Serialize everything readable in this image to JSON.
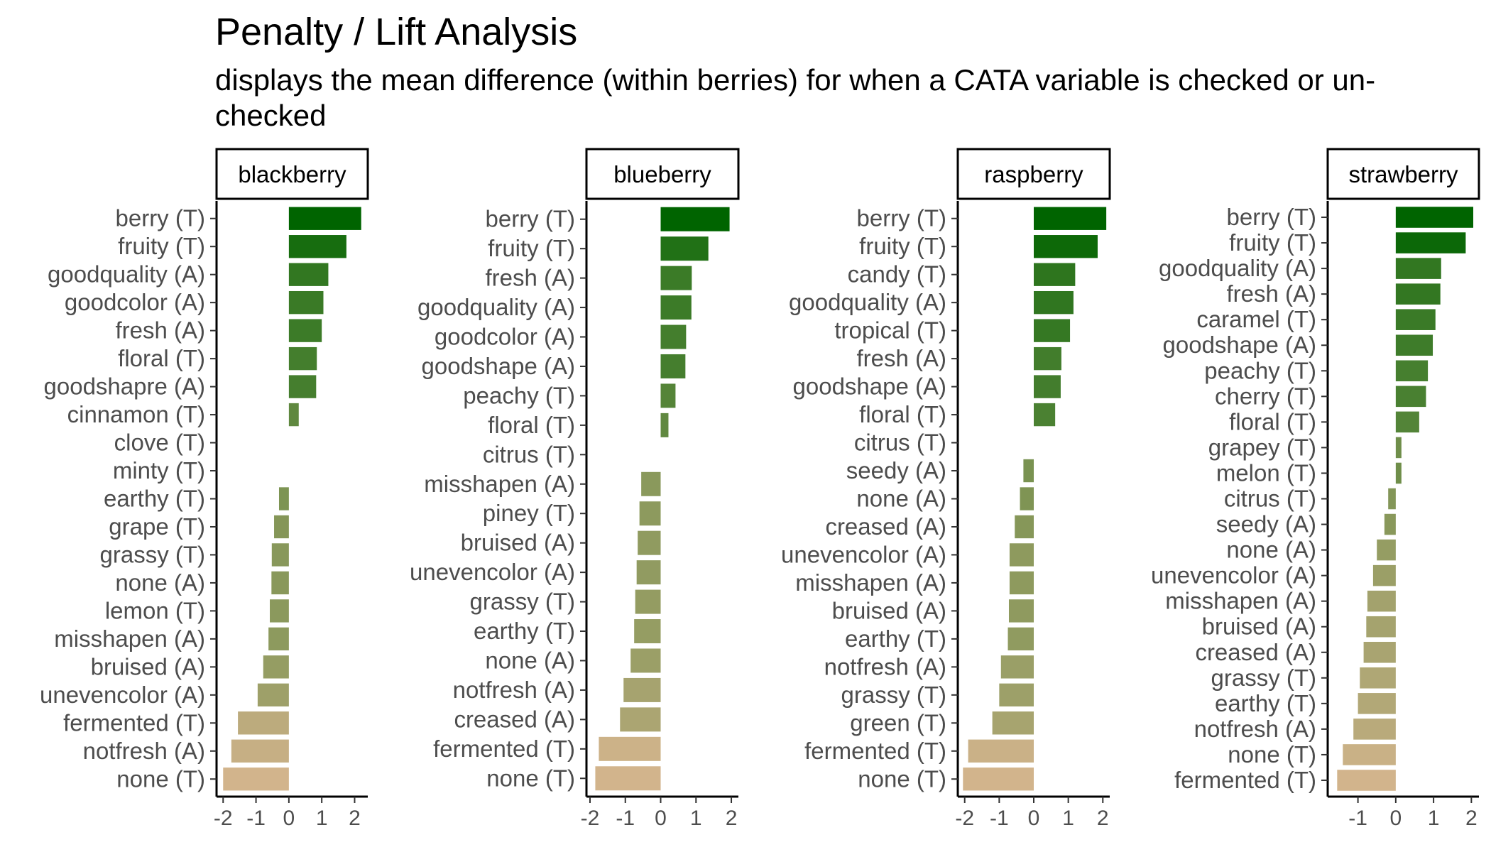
{
  "title": "Penalty / Lift Analysis",
  "subtitle": "displays the mean difference (within berries) for when a CATA variable is checked or un-checked",
  "colors": {
    "high": "#006400",
    "low": "#D2B48C"
  },
  "chart_data": [
    {
      "type": "bar",
      "orientation": "horizontal",
      "facet": "blackberry",
      "categories": [
        "berry (T)",
        "fruity (T)",
        "goodquality (A)",
        "goodcolor (A)",
        "fresh (A)",
        "floral (T)",
        "goodshapre (A)",
        "cinnamon (T)",
        "clove (T)",
        "minty (T)",
        "earthy (T)",
        "grape (T)",
        "grassy (T)",
        "none (A)",
        "lemon (T)",
        "misshapen (A)",
        "bruised (A)",
        "unevencolor (A)",
        "fermented (T)",
        "notfresh (A)",
        "none (T)"
      ],
      "values": [
        2.2,
        1.75,
        1.2,
        1.05,
        1.0,
        0.85,
        0.83,
        0.3,
        0.0,
        0.0,
        -0.3,
        -0.45,
        -0.52,
        -0.53,
        -0.58,
        -0.62,
        -0.78,
        -0.95,
        -1.55,
        -1.75,
        -2.0
      ],
      "xlim": [
        -2.2,
        2.4
      ],
      "xticks": [
        "-2",
        "-1",
        "0",
        "1",
        "2"
      ]
    },
    {
      "type": "bar",
      "orientation": "horizontal",
      "facet": "blueberry",
      "categories": [
        "berry (T)",
        "fruity (T)",
        "fresh (A)",
        "goodquality (A)",
        "goodcolor (A)",
        "goodshape (A)",
        "peachy (T)",
        "floral (T)",
        "citrus (T)",
        "misshapen (A)",
        "piney (T)",
        "bruised (A)",
        "unevencolor (A)",
        "grassy (T)",
        "earthy (T)",
        "none (A)",
        "notfresh (A)",
        "creased (A)",
        "fermented (T)",
        "none (T)"
      ],
      "values": [
        1.95,
        1.35,
        0.88,
        0.87,
        0.72,
        0.7,
        0.42,
        0.22,
        0.0,
        -0.55,
        -0.6,
        -0.65,
        -0.68,
        -0.72,
        -0.75,
        -0.85,
        -1.05,
        -1.15,
        -1.75,
        -1.85
      ],
      "xlim": [
        -2.1,
        2.2
      ],
      "xticks": [
        "-2",
        "-1",
        "0",
        "1",
        "2"
      ]
    },
    {
      "type": "bar",
      "orientation": "horizontal",
      "facet": "raspberry",
      "categories": [
        "berry (T)",
        "fruity (T)",
        "candy (T)",
        "goodquality (A)",
        "tropical (T)",
        "fresh (A)",
        "goodshape (A)",
        "floral (T)",
        "citrus (T)",
        "seedy (A)",
        "none (A)",
        "creased (A)",
        "unevencolor (A)",
        "misshapen (A)",
        "bruised (A)",
        "earthy (T)",
        "notfresh (A)",
        "grassy (T)",
        "green (T)",
        "fermented (T)",
        "none (T)"
      ],
      "values": [
        2.1,
        1.85,
        1.2,
        1.15,
        1.05,
        0.8,
        0.78,
        0.62,
        0.0,
        -0.3,
        -0.4,
        -0.55,
        -0.7,
        -0.7,
        -0.72,
        -0.75,
        -0.95,
        -1.0,
        -1.2,
        -1.9,
        -2.05
      ],
      "xlim": [
        -2.2,
        2.2
      ],
      "xticks": [
        "-2",
        "-1",
        "0",
        "1",
        "2"
      ]
    },
    {
      "type": "bar",
      "orientation": "horizontal",
      "facet": "strawberry",
      "categories": [
        "berry (T)",
        "fruity (T)",
        "goodquality (A)",
        "fresh (A)",
        "caramel (T)",
        "goodshape (A)",
        "peachy (T)",
        "cherry (T)",
        "floral (T)",
        "grapey (T)",
        "melon (T)",
        "citrus (T)",
        "seedy (A)",
        "none (A)",
        "unevencolor (A)",
        "misshapen (A)",
        "bruised (A)",
        "creased (A)",
        "grassy (T)",
        "earthy (T)",
        "notfresh (A)",
        "none (T)",
        "fermented (T)"
      ],
      "values": [
        2.05,
        1.85,
        1.2,
        1.18,
        1.05,
        0.98,
        0.85,
        0.8,
        0.62,
        0.15,
        0.15,
        -0.2,
        -0.3,
        -0.5,
        -0.6,
        -0.75,
        -0.78,
        -0.85,
        -0.95,
        -1.0,
        -1.12,
        -1.4,
        -1.55
      ],
      "xlim": [
        -1.8,
        2.2
      ],
      "xticks": [
        "-1",
        "0",
        "1",
        "2"
      ]
    }
  ]
}
